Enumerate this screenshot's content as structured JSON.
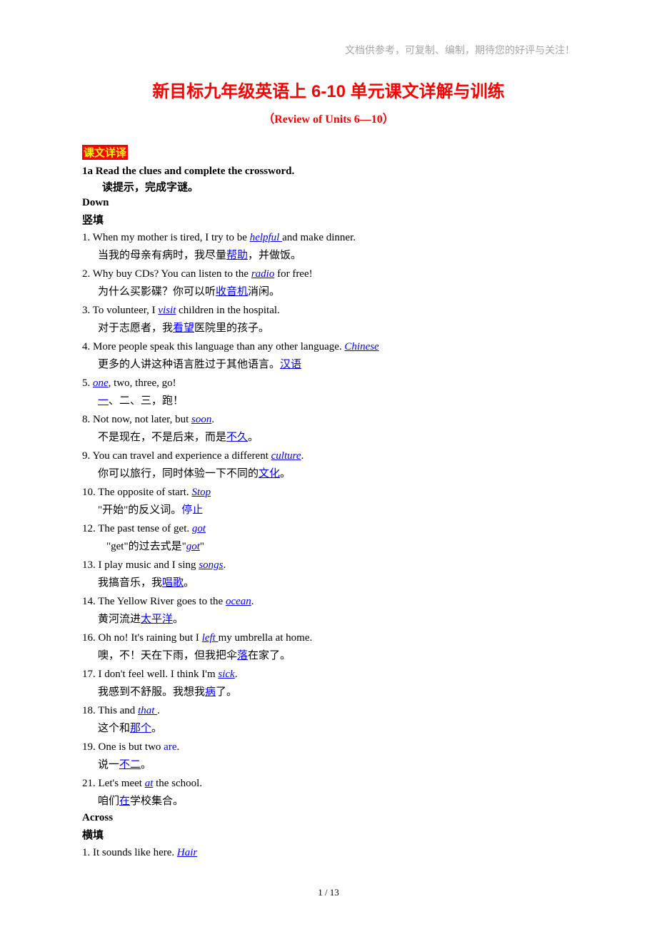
{
  "colors": {
    "header_note": "#a6a6a6",
    "title": "#ff0000",
    "tag_bg": "#ff0000",
    "tag_fg": "#ffff00",
    "answer": "#0000ff",
    "text": "#000000",
    "background": "#ffffff"
  },
  "fonts": {
    "serif_en": "Times New Roman",
    "serif_cn": "SimSun",
    "title_size": 24,
    "subtitle_size": 16,
    "body_size": 15,
    "footer_size": 13
  },
  "header_note": "文档供参考，可复制、编制，期待您的好评与关注！",
  "title": "新目标九年级英语上 6-10 单元课文详解与训练",
  "subtitle": "（Review of Units 6—10）",
  "section_tag": "课文详译",
  "instruction_en": "1a Read the clues and complete the crossword.",
  "instruction_cn": "读提示，完成字谜。",
  "down_label_en": "Down",
  "down_label_cn": "竖填",
  "down_items": [
    {
      "num": "1",
      "en_pre": "When my mother is tired, I try to be ",
      "en_ans": "helpful ",
      "en_post": "and make dinner.",
      "cn_pre": "当我的母亲有病时，我尽量",
      "cn_ans": "帮助",
      "cn_post": "，并做饭。"
    },
    {
      "num": "2",
      "en_pre": "Why buy CDs? You can listen to the ",
      "en_ans": "radio",
      "en_post": " for free!",
      "cn_pre": "为什么买影碟？你可以听",
      "cn_ans": "收音机",
      "cn_post": "消闲。"
    },
    {
      "num": "3",
      "en_pre": "To volunteer, I ",
      "en_ans": "visit",
      "en_post": " children in the hospital.",
      "cn_pre": "对于志愿者，我",
      "cn_ans": "看望",
      "cn_post": "医院里的孩子。"
    },
    {
      "num": "4",
      "en_pre": "More people speak this language than any other language. ",
      "en_ans": "Chinese",
      "en_post": "",
      "cn_pre": "更多的人讲这种语言胜过于其他语言。",
      "cn_ans": "汉语",
      "cn_post": ""
    },
    {
      "num": "5",
      "en_pre": "",
      "en_ans": "one",
      "en_post": ", two, three, go!",
      "cn_pre": " ",
      "cn_ans": "一",
      "cn_post": "、二、三，跑！"
    },
    {
      "num": "8",
      "en_pre": "Not now, not later, but ",
      "en_ans": "soon",
      "en_post": ".",
      "cn_pre": "不是现在，不是后来，而是",
      "cn_ans": "不久",
      "cn_post": "。"
    },
    {
      "num": "9",
      "en_pre": "You can travel and experience a different ",
      "en_ans": "culture",
      "en_post": ".",
      "cn_pre": "你可以旅行，同时体验一下不同的",
      "cn_ans": "文化",
      "cn_post": "。"
    },
    {
      "num": "10",
      "en_pre": "The opposite of start. ",
      "en_ans": "Stop",
      "en_post": "",
      "cn_pre": "\"开始\"的反义词。",
      "cn_ans": "停止",
      "cn_post": "",
      "cn_no_underline": true
    },
    {
      "num": "12",
      "en_pre": "The past tense of get. ",
      "en_ans": "got",
      "en_post": "",
      "cn_pre": " \"get\"的过去式是\"",
      "cn_ans": "got",
      "cn_post": "\"",
      "cn_extra_indent": true
    },
    {
      "num": "13",
      "en_pre": "I play music and I sing ",
      "en_ans": "songs",
      "en_post": ".",
      "cn_pre": "我搞音乐，我",
      "cn_ans": "唱歌",
      "cn_post": "。"
    },
    {
      "num": "14",
      "en_pre": "The Yellow River goes to the ",
      "en_ans": "ocean",
      "en_post": ".",
      "cn_pre": " 黄河流进",
      "cn_ans": "太平洋",
      "cn_post": "。"
    },
    {
      "num": "16",
      "en_pre": "Oh no! It's raining but I ",
      "en_ans": "left  ",
      "en_post": " my umbrella at home.",
      "cn_pre": "噢，不！天在下雨，但我把伞",
      "cn_ans": "落",
      "cn_post": "在家了。"
    },
    {
      "num": "17",
      "en_pre": "I don't feel well. I think I'm ",
      "en_ans": "sick",
      "en_post": ".",
      "cn_pre": "我感到不舒服。我想我",
      "cn_ans": "病",
      "cn_post": "了。"
    },
    {
      "num": "18",
      "en_pre": "This and ",
      "en_ans": "that ",
      "en_post": ".",
      "cn_pre": "这个和",
      "cn_ans": "那个",
      "cn_post": "。"
    },
    {
      "num": "19",
      "en_pre": "One is but two ",
      "en_ans": "are",
      "en_post": ".",
      "cn_pre": "说一",
      "cn_ans": "不二",
      "cn_post": "。",
      "en_no_underline": true
    },
    {
      "num": "21",
      "en_pre": "Let's meet ",
      "en_ans": "at",
      "en_post": " the school.",
      "cn_pre": "咱们",
      "cn_ans": "在",
      "cn_post": "学校集合。"
    }
  ],
  "across_label_en": "Across",
  "across_label_cn": " 横填",
  "across_items": [
    {
      "num": "1",
      "en_pre": "It sounds like here. ",
      "en_ans": "Hair",
      "en_post": ""
    }
  ],
  "footer": "1  / 13"
}
